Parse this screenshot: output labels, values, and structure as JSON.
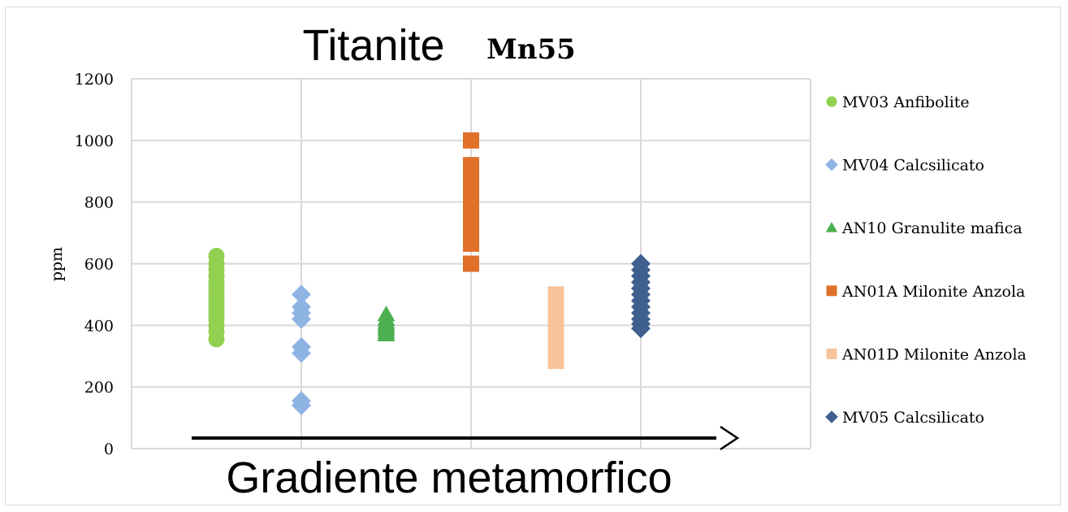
{
  "chart_data": {
    "type": "scatter",
    "title": "Titanite",
    "subtitle": "Mn55",
    "xlabel": "Gradiente metamorfico",
    "ylabel": "ppm",
    "ylim": [
      0,
      1200
    ],
    "yticks": [
      "0",
      "200",
      "400",
      "600",
      "800",
      "1000",
      "1200"
    ],
    "xlim": [
      0,
      4
    ],
    "grid": true,
    "legend_position": "right",
    "series": [
      {
        "name": "MV03 Anfibolite",
        "marker": "circle",
        "color": "#92d050",
        "x": 0.5,
        "values": [
          355,
          380,
          400,
          420,
          435,
          450,
          465,
          480,
          495,
          510,
          525,
          540,
          560,
          580,
          600,
          625
        ]
      },
      {
        "name": "MV04 Calcsilicato",
        "marker": "diamond",
        "color": "#8eb4e3",
        "x": 1.0,
        "values": [
          140,
          155,
          310,
          330,
          420,
          440,
          460,
          500
        ]
      },
      {
        "name": "AN10 Granulite mafica",
        "marker": "triangle",
        "color": "#4caf50",
        "x": 1.5,
        "values": [
          370,
          378,
          386,
          394,
          402,
          410,
          420,
          435
        ]
      },
      {
        "name": "AN01A Milonite Anzola",
        "marker": "square",
        "color": "#e0702a",
        "x": 2.0,
        "values": [
          600,
          665,
          680,
          700,
          720,
          740,
          760,
          780,
          800,
          820,
          840,
          860,
          880,
          900,
          920,
          1000
        ]
      },
      {
        "name": "AN01D Milonite Anzola",
        "marker": "square",
        "color": "#f6c39a",
        "x": 2.5,
        "values": [
          285,
          300,
          315,
          330,
          345,
          360,
          375,
          390,
          405,
          420,
          435,
          450,
          465,
          480,
          500
        ]
      },
      {
        "name": "MV05 Calcsilicato",
        "marker": "diamond",
        "color": "#3f5f8f",
        "x": 3.0,
        "values": [
          390,
          405,
          420,
          440,
          460,
          480,
          500,
          520,
          540,
          560,
          580,
          600
        ]
      }
    ]
  }
}
